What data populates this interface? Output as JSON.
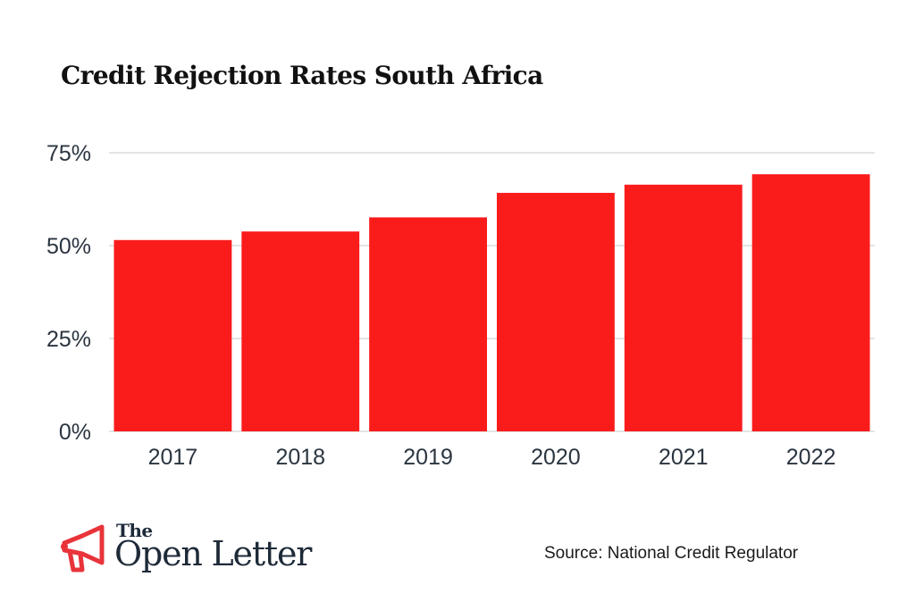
{
  "chart_data": {
    "type": "bar",
    "title": "Credit Rejection Rates South Africa",
    "categories": [
      "2017",
      "2018",
      "2019",
      "2020",
      "2021",
      "2022"
    ],
    "values": [
      51.5,
      53.8,
      57.6,
      64.2,
      66.4,
      69.2
    ],
    "unit": "%",
    "ylim": [
      0,
      75
    ],
    "yticks": [
      0,
      25,
      50,
      75
    ],
    "ytick_labels": [
      "0%",
      "25%",
      "50%",
      "75%"
    ],
    "xlabel": "",
    "ylabel": "",
    "grid": true,
    "bar_color": "#fa1b1b",
    "grid_color": "#dcdcdc"
  },
  "source": "Source: National Credit Regulator",
  "logo": {
    "the": "The",
    "name": "Open Letter",
    "icon": "megaphone-icon",
    "icon_color": "#e8343a"
  }
}
